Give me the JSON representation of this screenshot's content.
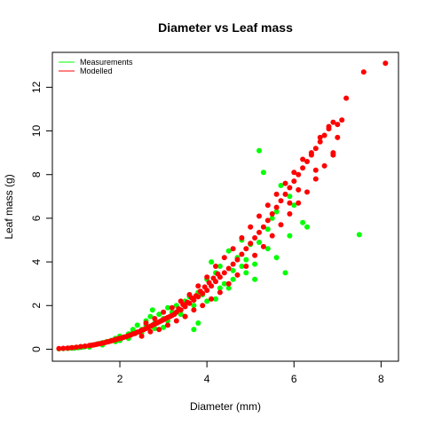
{
  "chart_data": {
    "type": "scatter",
    "title": "Diameter vs Leaf mass",
    "xlabel": "Diameter (mm)",
    "ylabel": "Leaf mass (g)",
    "xlim": [
      0.45,
      8.4
    ],
    "ylim": [
      -0.55,
      13.6
    ],
    "xticks": [
      2,
      4,
      6,
      8
    ],
    "yticks": [
      0,
      2,
      4,
      6,
      8,
      10,
      12
    ],
    "grid": false,
    "legend_position": "top-left",
    "series": [
      {
        "name": "Measurements",
        "color": "#00ff00",
        "points": [
          [
            0.6,
            0.02
          ],
          [
            0.7,
            0.03
          ],
          [
            0.8,
            0.04
          ],
          [
            0.85,
            0.05
          ],
          [
            0.9,
            0.06
          ],
          [
            0.95,
            0.05
          ],
          [
            1.0,
            0.08
          ],
          [
            1.05,
            0.07
          ],
          [
            1.1,
            0.09
          ],
          [
            1.15,
            0.1
          ],
          [
            1.2,
            0.12
          ],
          [
            1.3,
            0.14
          ],
          [
            1.4,
            0.2
          ],
          [
            1.5,
            0.25
          ],
          [
            1.6,
            0.3
          ],
          [
            1.7,
            0.35
          ],
          [
            1.8,
            0.4
          ],
          [
            1.9,
            0.5
          ],
          [
            2.0,
            0.6
          ],
          [
            2.1,
            0.55
          ],
          [
            2.2,
            0.7
          ],
          [
            2.3,
            0.8
          ],
          [
            2.4,
            1.1
          ],
          [
            2.5,
            0.9
          ],
          [
            2.6,
            1.3
          ],
          [
            2.7,
            1.5
          ],
          [
            2.75,
            1.8
          ],
          [
            2.8,
            1.2
          ],
          [
            2.9,
            1.6
          ],
          [
            3.0,
            1.4
          ],
          [
            3.1,
            1.9
          ],
          [
            3.2,
            1.7
          ],
          [
            3.3,
            2.0
          ],
          [
            3.4,
            1.8
          ],
          [
            3.5,
            2.2
          ],
          [
            3.6,
            2.4
          ],
          [
            3.7,
            0.9
          ],
          [
            3.8,
            2.6
          ],
          [
            3.9,
            2.5
          ],
          [
            4.0,
            3.2
          ],
          [
            4.1,
            4.0
          ],
          [
            4.2,
            3.5
          ],
          [
            4.3,
            3.8
          ],
          [
            4.4,
            3.0
          ],
          [
            4.5,
            4.5
          ],
          [
            4.6,
            3.2
          ],
          [
            4.7,
            4.2
          ],
          [
            4.8,
            5.0
          ],
          [
            4.9,
            3.5
          ],
          [
            5.0,
            4.8
          ],
          [
            5.1,
            3.9
          ],
          [
            5.2,
            9.1
          ],
          [
            5.3,
            8.1
          ],
          [
            5.4,
            4.6
          ],
          [
            5.5,
            6.0
          ],
          [
            5.6,
            6.3
          ],
          [
            5.7,
            7.5
          ],
          [
            5.8,
            3.5
          ],
          [
            5.9,
            7.0
          ],
          [
            6.0,
            6.6
          ],
          [
            6.2,
            5.8
          ],
          [
            6.3,
            5.6
          ],
          [
            7.5,
            5.25
          ],
          [
            2.0,
            0.4
          ],
          [
            2.3,
            0.9
          ],
          [
            2.6,
            1.1
          ],
          [
            3.0,
            1.0
          ],
          [
            3.5,
            1.5
          ],
          [
            3.8,
            1.2
          ],
          [
            4.2,
            2.3
          ],
          [
            4.5,
            2.8
          ],
          [
            4.8,
            3.8
          ],
          [
            5.1,
            3.2
          ],
          [
            5.4,
            5.5
          ],
          [
            5.6,
            4.2
          ],
          [
            5.9,
            5.2
          ],
          [
            1.3,
            0.1
          ],
          [
            1.6,
            0.2
          ],
          [
            1.9,
            0.35
          ],
          [
            2.2,
            0.5
          ],
          [
            2.5,
            0.75
          ],
          [
            2.8,
            0.95
          ],
          [
            3.1,
            1.3
          ],
          [
            3.4,
            1.6
          ],
          [
            3.7,
            2.0
          ],
          [
            4.0,
            2.2
          ],
          [
            4.3,
            2.8
          ],
          [
            4.6,
            3.6
          ],
          [
            4.9,
            4.1
          ],
          [
            5.2,
            4.9
          ]
        ]
      },
      {
        "name": "Modelled",
        "color": "#ff0000",
        "points": [
          [
            0.6,
            0.03
          ],
          [
            0.7,
            0.04
          ],
          [
            0.8,
            0.05
          ],
          [
            0.9,
            0.07
          ],
          [
            1.0,
            0.09
          ],
          [
            1.1,
            0.12
          ],
          [
            1.2,
            0.14
          ],
          [
            1.3,
            0.17
          ],
          [
            1.4,
            0.2
          ],
          [
            1.5,
            0.24
          ],
          [
            1.6,
            0.28
          ],
          [
            1.7,
            0.33
          ],
          [
            1.8,
            0.38
          ],
          [
            1.9,
            0.44
          ],
          [
            2.0,
            0.5
          ],
          [
            2.1,
            0.56
          ],
          [
            2.2,
            0.62
          ],
          [
            2.3,
            0.7
          ],
          [
            2.4,
            0.78
          ],
          [
            2.5,
            0.86
          ],
          [
            2.6,
            0.95
          ],
          [
            2.7,
            1.05
          ],
          [
            2.8,
            1.15
          ],
          [
            2.9,
            1.25
          ],
          [
            3.0,
            1.35
          ],
          [
            3.1,
            1.45
          ],
          [
            3.2,
            1.55
          ],
          [
            3.3,
            1.7
          ],
          [
            3.4,
            1.8
          ],
          [
            3.5,
            1.95
          ],
          [
            3.6,
            2.1
          ],
          [
            3.7,
            2.25
          ],
          [
            3.8,
            2.4
          ],
          [
            3.9,
            2.55
          ],
          [
            4.0,
            2.7
          ],
          [
            4.1,
            2.9
          ],
          [
            4.2,
            3.1
          ],
          [
            4.3,
            3.3
          ],
          [
            4.4,
            3.5
          ],
          [
            4.5,
            3.7
          ],
          [
            4.6,
            3.9
          ],
          [
            4.7,
            4.1
          ],
          [
            4.8,
            4.35
          ],
          [
            4.9,
            4.6
          ],
          [
            5.0,
            4.85
          ],
          [
            5.1,
            5.1
          ],
          [
            5.2,
            5.35
          ],
          [
            5.3,
            5.6
          ],
          [
            5.4,
            5.9
          ],
          [
            5.5,
            6.2
          ],
          [
            5.6,
            6.5
          ],
          [
            5.7,
            6.8
          ],
          [
            5.8,
            7.1
          ],
          [
            5.9,
            7.4
          ],
          [
            6.0,
            7.7
          ],
          [
            6.1,
            8.0
          ],
          [
            6.2,
            8.3
          ],
          [
            6.3,
            8.6
          ],
          [
            6.4,
            8.9
          ],
          [
            6.5,
            9.2
          ],
          [
            6.6,
            9.5
          ],
          [
            6.7,
            9.8
          ],
          [
            6.8,
            10.1
          ],
          [
            6.9,
            10.4
          ],
          [
            7.0,
            10.3
          ],
          [
            7.1,
            10.5
          ],
          [
            7.2,
            11.5
          ],
          [
            7.6,
            12.7
          ],
          [
            8.1,
            13.1
          ],
          [
            2.5,
            0.6
          ],
          [
            2.6,
            1.2
          ],
          [
            2.7,
            0.8
          ],
          [
            2.8,
            1.4
          ],
          [
            2.9,
            0.9
          ],
          [
            3.0,
            1.7
          ],
          [
            3.1,
            1.1
          ],
          [
            3.2,
            1.9
          ],
          [
            3.3,
            1.3
          ],
          [
            3.4,
            2.2
          ],
          [
            3.5,
            1.5
          ],
          [
            3.6,
            2.5
          ],
          [
            3.7,
            1.8
          ],
          [
            3.8,
            2.9
          ],
          [
            3.9,
            2.0
          ],
          [
            4.0,
            3.3
          ],
          [
            4.1,
            2.3
          ],
          [
            4.2,
            3.8
          ],
          [
            4.3,
            2.6
          ],
          [
            4.4,
            4.2
          ],
          [
            4.5,
            3.0
          ],
          [
            4.6,
            4.6
          ],
          [
            4.7,
            3.4
          ],
          [
            4.8,
            5.1
          ],
          [
            4.9,
            3.8
          ],
          [
            5.0,
            5.6
          ],
          [
            5.1,
            4.3
          ],
          [
            5.2,
            6.1
          ],
          [
            5.3,
            4.7
          ],
          [
            5.4,
            6.6
          ],
          [
            5.5,
            5.2
          ],
          [
            5.6,
            7.1
          ],
          [
            5.7,
            5.7
          ],
          [
            5.8,
            7.6
          ],
          [
            5.9,
            6.2
          ],
          [
            6.0,
            8.1
          ],
          [
            6.1,
            6.7
          ],
          [
            6.2,
            8.7
          ],
          [
            6.3,
            7.2
          ],
          [
            6.4,
            9.0
          ],
          [
            6.5,
            7.8
          ],
          [
            6.6,
            9.7
          ],
          [
            6.7,
            8.4
          ],
          [
            6.8,
            10.2
          ],
          [
            6.9,
            8.9
          ],
          [
            7.0,
            9.7
          ],
          [
            6.9,
            9.0
          ],
          [
            6.5,
            8.2
          ],
          [
            6.1,
            7.3
          ],
          [
            5.9,
            6.7
          ],
          [
            3.35,
            1.85
          ],
          [
            3.45,
            2.05
          ],
          [
            3.55,
            2.15
          ],
          [
            3.65,
            2.35
          ],
          [
            3.75,
            2.45
          ],
          [
            3.85,
            2.65
          ],
          [
            3.95,
            2.85
          ],
          [
            4.05,
            3.05
          ],
          [
            4.15,
            3.25
          ],
          [
            4.25,
            3.45
          ],
          [
            2.65,
            1.0
          ],
          [
            2.75,
            1.1
          ],
          [
            2.85,
            1.2
          ],
          [
            2.95,
            1.3
          ],
          [
            3.05,
            1.4
          ],
          [
            3.15,
            1.5
          ],
          [
            3.25,
            1.6
          ],
          [
            2.55,
            0.9
          ],
          [
            2.45,
            0.8
          ],
          [
            2.35,
            0.72
          ],
          [
            2.25,
            0.65
          ],
          [
            2.15,
            0.58
          ],
          [
            2.05,
            0.52
          ],
          [
            1.95,
            0.47
          ],
          [
            1.85,
            0.41
          ],
          [
            1.75,
            0.35
          ],
          [
            1.65,
            0.3
          ],
          [
            1.55,
            0.26
          ],
          [
            1.45,
            0.22
          ],
          [
            1.35,
            0.18
          ]
        ]
      }
    ]
  }
}
